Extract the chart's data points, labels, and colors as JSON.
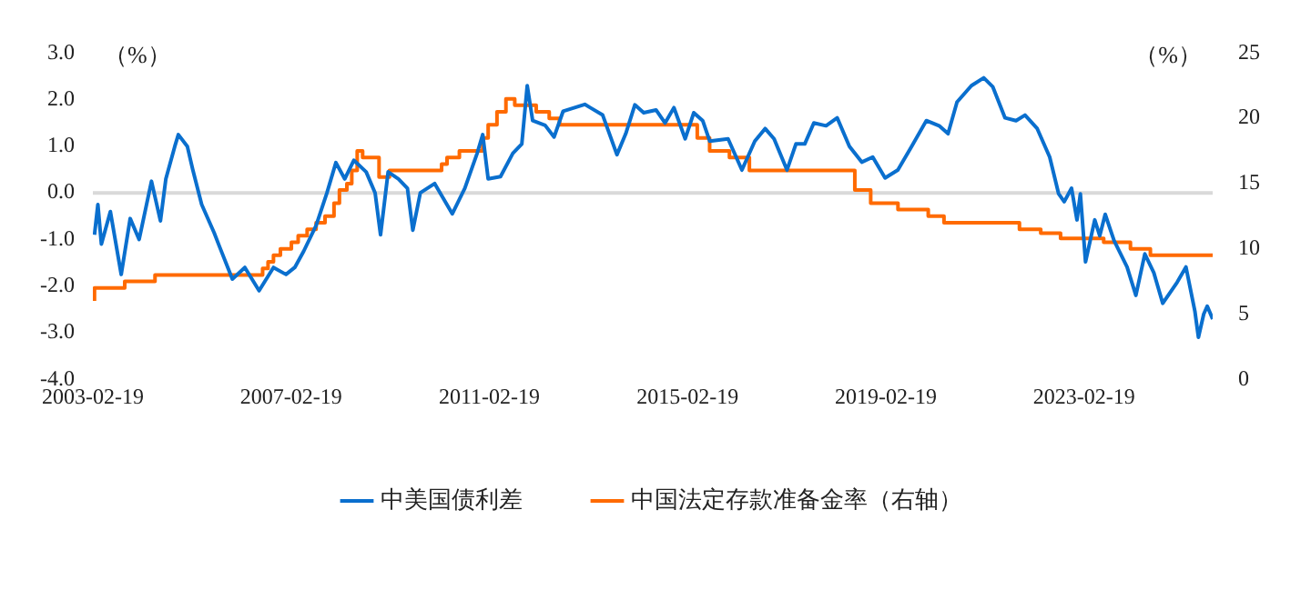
{
  "chart_data": {
    "type": "line",
    "ylabel": "（%）",
    "y2label": "（%）",
    "xlim": [
      "2003-02-19",
      "2025-09-23"
    ],
    "xticks": [
      "2003-02-19",
      "2007-02-19",
      "2011-02-19",
      "2015-02-19",
      "2019-02-19",
      "2023-02-19"
    ],
    "ylim": [
      -4,
      3
    ],
    "yticks": [
      {
        "value": -4,
        "label": "-4.0"
      },
      {
        "value": -3,
        "label": "-3.0"
      },
      {
        "value": -2,
        "label": "-2.0"
      },
      {
        "value": -1,
        "label": "-1.0"
      },
      {
        "value": 0,
        "label": "0.0"
      },
      {
        "value": 1,
        "label": "1.0"
      },
      {
        "value": 2,
        "label": "2.0"
      },
      {
        "value": 3,
        "label": "3.0"
      }
    ],
    "y2lim": [
      0,
      25
    ],
    "y2ticks": [
      0,
      5,
      10,
      15,
      20,
      25
    ],
    "grid": false,
    "legend": "bottom",
    "ref_lines": [
      {
        "axis": "y",
        "value": 0,
        "color": "#d9d9d9"
      }
    ],
    "series": [
      {
        "name": "中美国债利差",
        "type": "line",
        "color": "#0a6fce",
        "x": [
          "2003-03-03",
          "2003-03-28",
          "2003-04-23",
          "2003-06-28",
          "2003-09-16",
          "2003-11-21",
          "2004-01-26",
          "2004-04-26",
          "2004-07-01",
          "2004-08-10",
          "2004-10-15",
          "2004-11-10",
          "2005-01-15",
          "2005-02-24",
          "2005-05-01",
          "2005-07-31",
          "2005-09-09",
          "2005-12-13",
          "2006-03-15",
          "2006-06-28",
          "2006-10-12",
          "2007-01-12",
          "2007-03-18",
          "2007-05-23",
          "2007-08-22",
          "2007-11-10",
          "2008-01-15",
          "2008-03-20",
          "2008-05-26",
          "2008-08-25",
          "2008-10-30",
          "2008-12-09",
          "2009-02-03",
          "2009-04-20",
          "2009-06-25",
          "2009-08-04",
          "2009-09-28",
          "2010-01-12",
          "2010-05-22",
          "2010-08-22",
          "2010-11-21",
          "2011-01-01",
          "2011-02-10",
          "2011-05-12",
          "2011-08-11",
          "2011-10-16",
          "2011-11-25",
          "2012-01-04",
          "2012-04-05",
          "2012-06-10",
          "2012-08-15",
          "2013-01-22",
          "2013-03-03",
          "2013-06-03",
          "2013-09-16",
          "2013-11-20",
          "2014-01-26",
          "2014-04-01",
          "2014-07-01",
          "2014-09-06",
          "2014-11-10",
          "2015-02-01",
          "2015-04-05",
          "2015-06-10",
          "2015-08-01",
          "2015-12-14",
          "2016-03-25",
          "2016-06-28",
          "2016-09-12",
          "2016-11-17",
          "2017-02-20",
          "2017-04-27",
          "2017-07-01",
          "2017-09-06",
          "2017-12-05",
          "2018-02-25",
          "2018-05-26",
          "2018-08-25",
          "2018-11-14",
          "2019-02-13",
          "2019-05-18",
          "2019-08-28",
          "2019-12-14",
          "2020-03-17",
          "2020-05-22",
          "2020-07-27",
          "2020-11-10",
          "2021-02-09",
          "2021-04-16",
          "2021-07-16",
          "2021-10-05",
          "2021-12-10",
          "2022-03-10",
          "2022-06-10",
          "2022-08-15",
          "2022-09-25",
          "2022-11-18",
          "2022-12-28",
          "2023-01-22",
          "2023-03-01",
          "2023-05-08",
          "2023-06-14",
          "2023-07-24",
          "2023-09-28",
          "2024-01-01",
          "2024-03-06",
          "2024-05-11",
          "2024-07-16",
          "2024-09-20",
          "2025-01-04",
          "2025-03-10",
          "2025-05-15",
          "2025-06-10",
          "2025-07-19",
          "2025-08-14",
          "2025-09-23"
        ],
        "values": [
          -0.9,
          -0.25,
          -1.1,
          -0.4,
          -1.75,
          -0.55,
          -1.0,
          0.25,
          -0.6,
          0.3,
          1.0,
          1.25,
          1.0,
          0.5,
          -0.25,
          -0.85,
          -1.15,
          -1.85,
          -1.6,
          -2.1,
          -1.6,
          -1.75,
          -1.6,
          -1.25,
          -0.7,
          0.0,
          0.65,
          0.3,
          0.7,
          0.45,
          0.0,
          -0.9,
          0.45,
          0.3,
          0.1,
          -0.8,
          0.0,
          0.2,
          -0.45,
          0.1,
          0.85,
          1.25,
          0.3,
          0.35,
          0.85,
          1.05,
          2.3,
          1.55,
          1.45,
          1.2,
          1.75,
          1.9,
          1.83,
          1.67,
          0.82,
          1.27,
          1.89,
          1.72,
          1.78,
          1.5,
          1.83,
          1.16,
          1.72,
          1.55,
          1.11,
          1.16,
          0.49,
          1.11,
          1.38,
          1.16,
          0.49,
          1.05,
          1.05,
          1.5,
          1.44,
          1.61,
          1.0,
          0.66,
          0.77,
          0.32,
          0.49,
          1.0,
          1.55,
          1.44,
          1.27,
          1.95,
          2.3,
          2.47,
          2.28,
          1.61,
          1.55,
          1.67,
          1.38,
          0.77,
          -0.02,
          -0.19,
          0.1,
          -0.58,
          -0.02,
          -1.48,
          -0.58,
          -0.92,
          -0.46,
          -1.03,
          -1.59,
          -2.2,
          -1.31,
          -1.71,
          -2.37,
          -1.92,
          -1.59,
          -2.54,
          -3.1,
          -2.6,
          -2.43,
          -2.71
        ]
      },
      {
        "name": "中国法定存款准备金率（右轴）",
        "type": "step",
        "axis": "y2",
        "color": "#ff6a00",
        "x": [
          "2003-03-03",
          "2003-10-12",
          "2004-05-22",
          "2006-07-24",
          "2006-09-02",
          "2006-10-12",
          "2006-12-02",
          "2007-02-21",
          "2007-04-12",
          "2007-06-17",
          "2007-08-22",
          "2007-10-27",
          "2008-01-01",
          "2008-02-10",
          "2008-04-05",
          "2008-05-11",
          "2008-06-20",
          "2008-07-30",
          "2008-11-28",
          "2009-02-13",
          "2010-03-04",
          "2010-04-13",
          "2010-07-13",
          "2011-01-01",
          "2011-02-10",
          "2011-04-16",
          "2011-06-21",
          "2011-08-25",
          "2012-01-30",
          "2012-05-05",
          "2012-07-20",
          "2015-05-01",
          "2015-07-31",
          "2015-12-24",
          "2016-05-19",
          "2018-07-05",
          "2018-10-30",
          "2019-05-19",
          "2019-12-28",
          "2020-04-22",
          "2021-10-30",
          "2022-04-05",
          "2022-08-29",
          "2023-07-13",
          "2024-01-26",
          "2024-06-21",
          "2025-01-30",
          "2025-09-23"
        ],
        "values": [
          6.0,
          7.0,
          7.5,
          8.0,
          8.5,
          9.0,
          9.5,
          10.0,
          10.5,
          11.0,
          11.5,
          12.0,
          12.5,
          13.5,
          14.5,
          15.0,
          16.0,
          17.5,
          17.0,
          15.5,
          16.0,
          16.5,
          17.0,
          17.5,
          18.5,
          19.5,
          20.5,
          21.5,
          21.0,
          20.5,
          20.0,
          19.5,
          18.5,
          17.5,
          17.0,
          16.0,
          14.5,
          13.5,
          13.0,
          12.5,
          12.0,
          11.5,
          11.2,
          10.8,
          10.5,
          10.0,
          9.5,
          9.5
        ]
      }
    ]
  }
}
